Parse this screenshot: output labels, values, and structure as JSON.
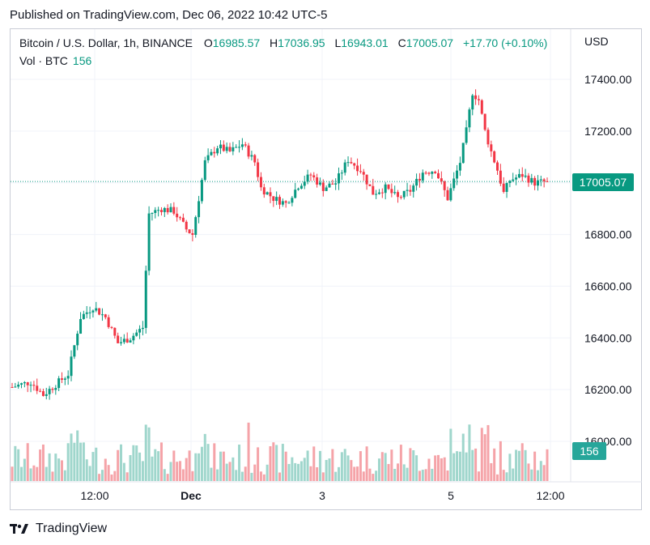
{
  "header": {
    "published": "Published on TradingView.com, Dec 06, 2022 10:42 UTC-5"
  },
  "legend": {
    "symbol": "Bitcoin / U.S. Dollar, 1h, BINANCE",
    "o_label": "O",
    "o_value": "16985.57",
    "h_label": "H",
    "h_value": "17036.95",
    "l_label": "L",
    "l_value": "16943.01",
    "c_label": "C",
    "c_value": "17005.07",
    "change": "+17.70 (+0.10%)",
    "vol_label": "Vol · BTC",
    "vol_value": "156"
  },
  "price_axis": {
    "currency": "USD",
    "ticks": [
      "17400.00",
      "17200.00",
      "17000.00",
      "16800.00",
      "16600.00",
      "16400.00",
      "16200.00",
      "16000.00"
    ],
    "last_price": "17005.07",
    "last_volume": "156"
  },
  "time_axis": {
    "ticks": [
      "12:00",
      "Dec",
      "3",
      "5",
      "12:00"
    ]
  },
  "footer": {
    "brand": "TradingView"
  },
  "colors": {
    "up": "#089981",
    "down": "#f23645",
    "up_volume": "#9fd6cc",
    "down_volume": "#f5a3a8",
    "grid": "#f0f3fa"
  },
  "chart_data": {
    "type": "candlestick",
    "title": "Bitcoin / U.S. Dollar, 1h, BINANCE",
    "ylabel": "USD",
    "ylim": [
      15800,
      17500
    ],
    "x_ticks": [
      "12:00",
      "Dec",
      "3",
      "5",
      "12:00"
    ],
    "y_ticks": [
      17400,
      17200,
      17000,
      16800,
      16600,
      16400,
      16200,
      16000
    ],
    "grid": true,
    "candles_approx": {
      "count": 160,
      "start_price": 16210,
      "end_price": 17005.07,
      "high_max": 17420,
      "low_min": 16150
    },
    "last_candle": {
      "open": 16985.57,
      "high": 17036.95,
      "low": 16943.01,
      "close": 17005.07
    },
    "last_volume": 156
  }
}
